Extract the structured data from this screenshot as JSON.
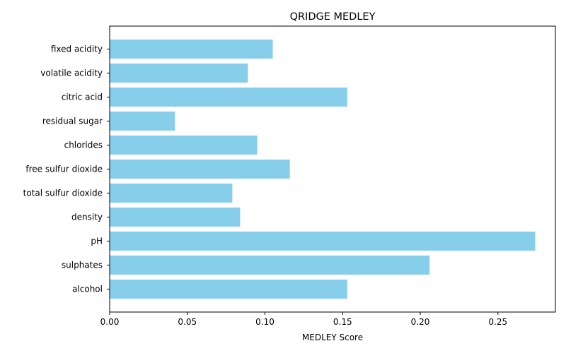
{
  "chart_data": {
    "type": "bar",
    "orientation": "horizontal",
    "title": "QRIDGE MEDLEY",
    "xlabel": "MEDLEY Score",
    "ylabel": "",
    "categories": [
      "fixed acidity",
      "volatile acidity",
      "citric acid",
      "residual sugar",
      "chlorides",
      "free sulfur dioxide",
      "total sulfur dioxide",
      "density",
      "pH",
      "sulphates",
      "alcohol"
    ],
    "values": [
      0.105,
      0.089,
      0.153,
      0.042,
      0.095,
      0.116,
      0.079,
      0.084,
      0.274,
      0.206,
      0.153
    ],
    "xlim": [
      0,
      0.287
    ],
    "xticks": [
      0.0,
      0.05,
      0.1,
      0.15,
      0.2,
      0.25
    ],
    "xtick_labels": [
      "0.00",
      "0.05",
      "0.10",
      "0.15",
      "0.20",
      "0.25"
    ],
    "bar_color": "#87ceeb",
    "grid": false,
    "legend": "none"
  }
}
